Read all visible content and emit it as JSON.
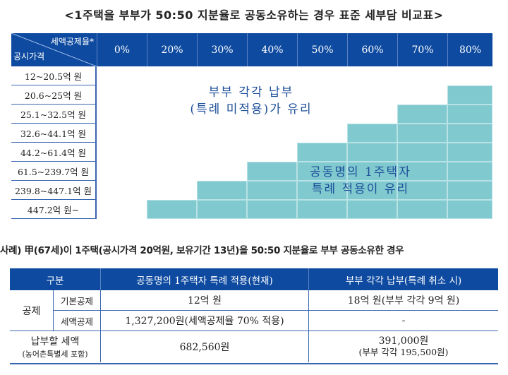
{
  "title": "<1주택을 부부가 50:50 지분율로 공동소유하는 경우 표준 세부담 비교표>",
  "chart": {
    "corner_top": "세액공제율*",
    "corner_bottom": "공시가격",
    "rates": [
      "0%",
      "20%",
      "30%",
      "40%",
      "50%",
      "60%",
      "70%",
      "80%"
    ],
    "rows": [
      {
        "label": "12~20.5억 원",
        "joint_favorable_from_rate": null
      },
      {
        "label": "20.6~25억 원",
        "joint_favorable_from_rate": "80%"
      },
      {
        "label": "25.1~32.5억 원",
        "joint_favorable_from_rate": "70%"
      },
      {
        "label": "32.6~44.1억 원",
        "joint_favorable_from_rate": "60%"
      },
      {
        "label": "44.2~61.4억 원",
        "joint_favorable_from_rate": "50%"
      },
      {
        "label": "61.5~239.7억 원",
        "joint_favorable_from_rate": "40%"
      },
      {
        "label": "239.8~447.1억 원",
        "joint_favorable_from_rate": "30%"
      },
      {
        "label": "447.2억 원~",
        "joint_favorable_from_rate": "20%"
      }
    ],
    "note_separate": [
      "부부 각각 납부",
      "(특례 미적용)가 유리"
    ],
    "note_joint": [
      "공동명의 1주택자",
      "특례 적용이 유리"
    ],
    "fill_color": "#80c9cf",
    "header_color": "#0d4aa0"
  },
  "example": "사례) 甲(67세)이 1주택(공시가격 20억원, 보유기간 13년)을 50:50 지분율로 부부 공동소유한 경우",
  "table": {
    "headers": [
      "구분",
      "공동명의 1주택자 특례 적용(현재)",
      "부부 각각 납부(특례 취소 시)"
    ],
    "group": "공제",
    "rows": [
      {
        "label": "기본공제",
        "current": "12억 원",
        "cancel": "18억 원(부부 각각 9억 원)"
      },
      {
        "label": "세액공제",
        "current": "1,327,200원(세액공제율 70% 적용)",
        "cancel": "-"
      }
    ],
    "tax_label": "납부할 세액",
    "tax_sublabel": "(농어촌특별세 포함)",
    "tax_current": "682,560원",
    "tax_cancel": "391,000원",
    "tax_cancel_sub": "(부부 각각 195,500원)"
  }
}
